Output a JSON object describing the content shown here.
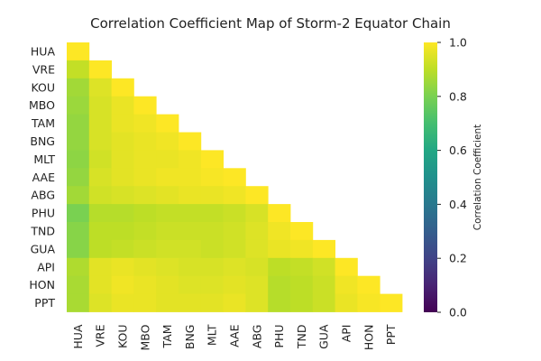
{
  "chart_data": {
    "type": "heatmap",
    "title": "Correlation Coefficient Map of Storm-2 Equator Chain",
    "mask": "upper-triangle",
    "labels": [
      "HUA",
      "VRE",
      "KOU",
      "MBO",
      "TAM",
      "BNG",
      "MLT",
      "AAE",
      "ABG",
      "PHU",
      "TND",
      "GUA",
      "API",
      "HON",
      "PPT"
    ],
    "matrix": [
      [
        1.0
      ],
      [
        0.91,
        1.0
      ],
      [
        0.86,
        0.95,
        1.0
      ],
      [
        0.85,
        0.94,
        0.97,
        1.0
      ],
      [
        0.84,
        0.94,
        0.97,
        0.98,
        1.0
      ],
      [
        0.84,
        0.94,
        0.96,
        0.97,
        0.98,
        1.0
      ],
      [
        0.83,
        0.93,
        0.96,
        0.97,
        0.97,
        0.98,
        1.0
      ],
      [
        0.84,
        0.94,
        0.96,
        0.97,
        0.98,
        0.98,
        0.99,
        1.0
      ],
      [
        0.86,
        0.93,
        0.94,
        0.95,
        0.96,
        0.97,
        0.97,
        0.98,
        1.0
      ],
      [
        0.8,
        0.89,
        0.89,
        0.9,
        0.91,
        0.91,
        0.91,
        0.92,
        0.94,
        1.0
      ],
      [
        0.82,
        0.9,
        0.9,
        0.91,
        0.92,
        0.92,
        0.92,
        0.93,
        0.95,
        0.98,
        1.0
      ],
      [
        0.82,
        0.9,
        0.91,
        0.92,
        0.93,
        0.93,
        0.92,
        0.93,
        0.95,
        0.97,
        0.98,
        1.0
      ],
      [
        0.88,
        0.96,
        0.97,
        0.96,
        0.95,
        0.94,
        0.94,
        0.95,
        0.94,
        0.9,
        0.91,
        0.93,
        1.0
      ],
      [
        0.87,
        0.96,
        0.98,
        0.97,
        0.96,
        0.95,
        0.95,
        0.96,
        0.95,
        0.89,
        0.9,
        0.92,
        0.98,
        1.0
      ],
      [
        0.87,
        0.95,
        0.97,
        0.97,
        0.96,
        0.96,
        0.96,
        0.97,
        0.95,
        0.89,
        0.9,
        0.92,
        0.97,
        0.99,
        1.0
      ]
    ],
    "colorbar": {
      "label": "Correlation Coefficient",
      "range": [
        0.0,
        1.0
      ],
      "ticks": [
        "0.0",
        "0.2",
        "0.4",
        "0.6",
        "0.8",
        "1.0"
      ],
      "colormap": "viridis"
    }
  }
}
